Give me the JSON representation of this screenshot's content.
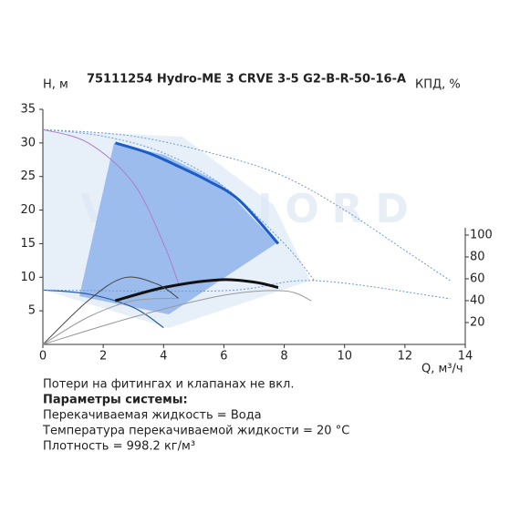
{
  "chart_data": {
    "type": "line",
    "title": "75111254 Hydro-ME 3 CRVE 3-5 G2-B-R-50-16-A",
    "watermark": "VANDJORD",
    "ylabel": "H, м",
    "y2label": "КПД, %",
    "xlabel": "Q, м³/ч",
    "xlim": [
      0,
      14
    ],
    "xticks": [
      0,
      2,
      4,
      6,
      8,
      10,
      12,
      14
    ],
    "ylim": [
      0,
      35
    ],
    "yticks": [
      5,
      10,
      15,
      20,
      25,
      30,
      35
    ],
    "y2lim": [
      0,
      215
    ],
    "y2ticks": [
      20,
      40,
      60,
      80,
      100
    ],
    "series": [
      {
        "color": "#6b9ad8",
        "style": "dotted",
        "width": 1,
        "x": [
          0,
          3,
          6,
          8,
          10,
          12,
          13.5
        ],
        "values": [
          32,
          31,
          28,
          25,
          20,
          14,
          9.5
        ]
      },
      {
        "color": "#6b9ad8",
        "style": "dotted",
        "width": 1,
        "x": [
          0,
          2,
          4,
          6,
          8,
          9
        ],
        "values": [
          32,
          31,
          28.5,
          23.5,
          15,
          9.5
        ]
      },
      {
        "color": "#b07ad0",
        "style": "solid",
        "width": 1,
        "x": [
          0,
          1.5,
          3,
          4,
          4.5
        ],
        "values": [
          32,
          30,
          24,
          15,
          9
        ]
      },
      {
        "color": "#1a5dc8",
        "style": "solid",
        "width": 3,
        "x": [
          2.4,
          3.5,
          4.5,
          5.5,
          6.5,
          7.8
        ],
        "values": [
          30,
          28.5,
          26.5,
          24.3,
          21.5,
          15
        ]
      },
      {
        "color": "#2a5aa8",
        "style": "solid",
        "width": 1.2,
        "x": [
          0,
          1.5,
          3,
          4
        ],
        "values": [
          8.1,
          7.5,
          5.5,
          2.5
        ]
      },
      {
        "color": "#6b9ad8",
        "style": "dotted",
        "width": 1,
        "x": [
          0,
          6,
          9,
          13.5
        ],
        "values": [
          8.1,
          8,
          9.5,
          6.8
        ]
      },
      {
        "color": "#111111",
        "style": "solid",
        "width": 3,
        "axis": "y2",
        "x": [
          2.4,
          4,
          5.8,
          7,
          7.8
        ],
        "values": [
          40,
          52,
          59,
          57,
          52
        ]
      },
      {
        "color": "#444444",
        "style": "solid",
        "width": 1,
        "axis": "y2",
        "x": [
          0,
          1.5,
          2.7,
          3.8,
          4.5
        ],
        "values": [
          0,
          40,
          61,
          55,
          42
        ]
      },
      {
        "color": "#999999",
        "style": "solid",
        "width": 1,
        "axis": "y2",
        "x": [
          0,
          1.5,
          3,
          4.5
        ],
        "values": [
          0,
          25,
          40,
          42
        ]
      },
      {
        "color": "#999999",
        "style": "solid",
        "width": 1,
        "axis": "y2",
        "x": [
          0,
          3,
          6,
          8,
          8.9
        ],
        "values": [
          0,
          25,
          45,
          49,
          40
        ]
      }
    ]
  },
  "notes": {
    "line1": "Потери на фитингах и клапанах не вкл.",
    "heading": "Параметры системы:",
    "line2": "Перекачиваемая жидкость = Вода",
    "line3": "Температура перекачиваемой жидкости = 20 °C",
    "line4": "Плотность = 998.2 кг/м³"
  }
}
